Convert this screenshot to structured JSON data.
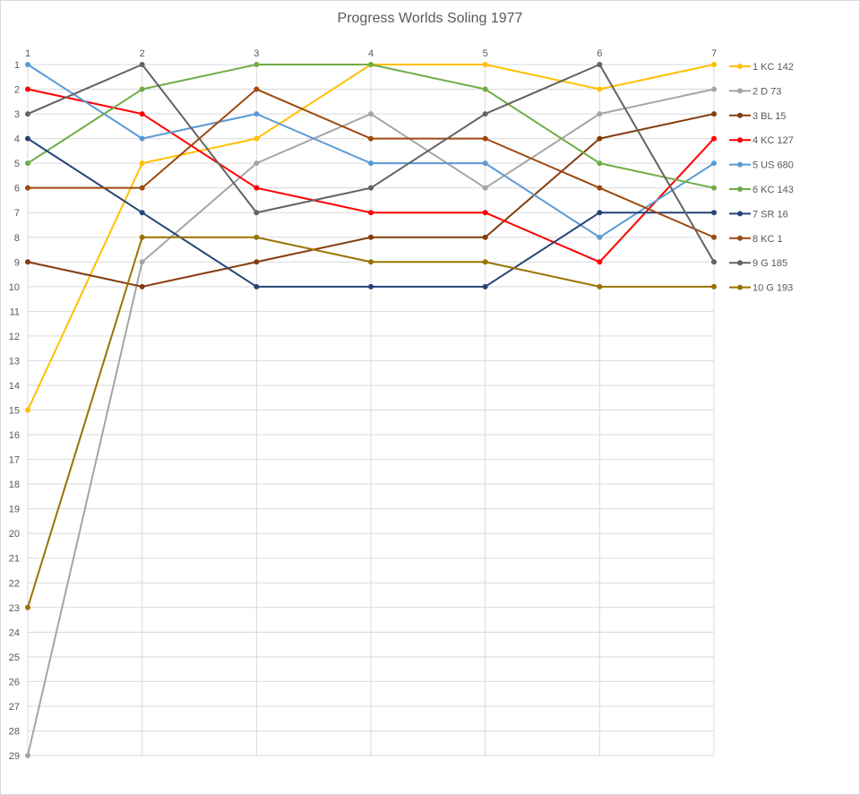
{
  "chart_data": {
    "type": "line",
    "title": "Progress Worlds Soling 1977",
    "xlabel": "",
    "ylabel": "",
    "x": [
      1,
      2,
      3,
      4,
      5,
      6,
      7
    ],
    "ylim": [
      1,
      29
    ],
    "y_inverted": true,
    "x_axis_position": "top",
    "grid": true,
    "legend_position": "right",
    "markers": "circle",
    "series": [
      {
        "name": "1 KC 142",
        "color": "#FFC000",
        "values": [
          15,
          5,
          4,
          1,
          1,
          2,
          1
        ]
      },
      {
        "name": "2 D 73",
        "color": "#A5A5A5",
        "values": [
          29,
          9,
          5,
          3,
          6,
          3,
          2
        ]
      },
      {
        "name": "3 BL 15",
        "color": "#843C0C",
        "values": [
          9,
          10,
          9,
          8,
          8,
          4,
          3
        ]
      },
      {
        "name": "4 KC 127",
        "color": "#FF0000",
        "values": [
          2,
          3,
          6,
          7,
          7,
          9,
          4
        ]
      },
      {
        "name": "5 US 680",
        "color": "#5B9BD5",
        "values": [
          1,
          4,
          3,
          5,
          5,
          8,
          5
        ]
      },
      {
        "name": "6 KC 143",
        "color": "#70AD47",
        "values": [
          5,
          2,
          1,
          1,
          2,
          5,
          6
        ]
      },
      {
        "name": "7 SR 16",
        "color": "#264478",
        "values": [
          4,
          7,
          10,
          10,
          10,
          7,
          7
        ]
      },
      {
        "name": "8 KC 1",
        "color": "#9E480E",
        "values": [
          6,
          6,
          2,
          4,
          4,
          6,
          8
        ]
      },
      {
        "name": "9 G 185",
        "color": "#636363",
        "values": [
          3,
          1,
          7,
          6,
          3,
          1,
          9
        ]
      },
      {
        "name": "10 G 193",
        "color": "#997300",
        "values": [
          23,
          8,
          8,
          9,
          9,
          10,
          10
        ]
      }
    ]
  }
}
